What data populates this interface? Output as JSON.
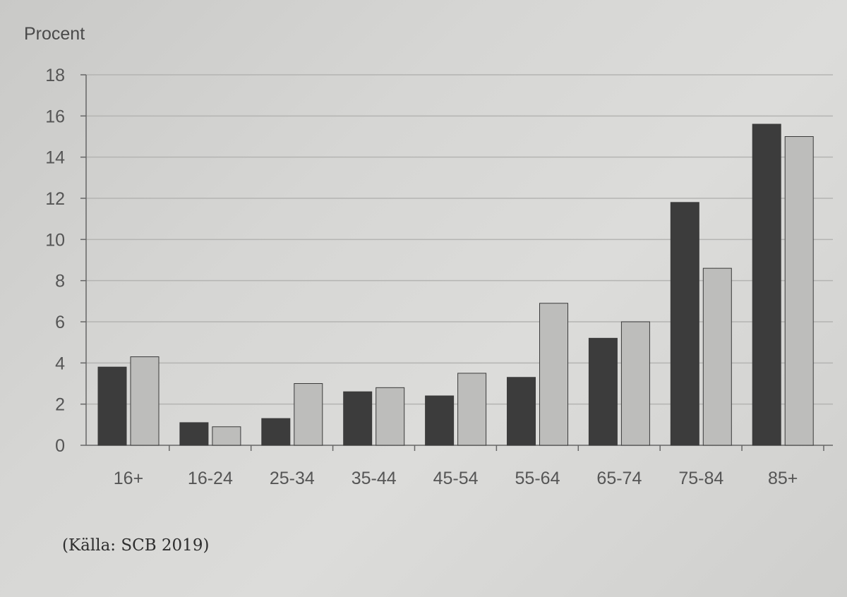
{
  "chart_data": {
    "type": "bar",
    "ylabel": "Procent",
    "ylim": [
      0,
      18
    ],
    "yticks": [
      "0",
      "2",
      "4",
      "6",
      "8",
      "10",
      "12",
      "14",
      "16",
      "18"
    ],
    "grid": true,
    "categories": [
      "16+",
      "16-24",
      "25-34",
      "35-44",
      "45-54",
      "55-64",
      "65-74",
      "75-84",
      "85+"
    ],
    "series": [
      {
        "color": "#3c3c3c",
        "values": [
          3.8,
          1.1,
          1.3,
          2.6,
          2.4,
          3.3,
          5.2,
          11.8,
          15.6
        ]
      },
      {
        "color": "#bdbdbb",
        "values": [
          4.3,
          0.9,
          3.0,
          2.8,
          3.5,
          6.9,
          6.0,
          8.6,
          15.0
        ]
      }
    ]
  },
  "source": "(Källa: SCB 2019)"
}
